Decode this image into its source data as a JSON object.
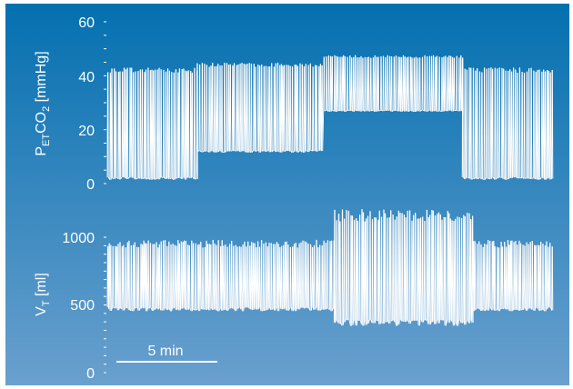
{
  "chart_data": [
    {
      "type": "line",
      "ylabel": {
        "main": "P",
        "sub": "ET",
        "mid": "CO",
        "sub2": "2",
        "unit": " [mmHg]"
      },
      "y_ticks": [
        "60",
        "40",
        "20",
        "0"
      ],
      "ylim": [
        0,
        60
      ],
      "x_unit": "min",
      "segments": [
        {
          "t0": 0.0,
          "t1": 3.35,
          "low": 2,
          "high": 42
        },
        {
          "t0": 3.35,
          "t1": 8.1,
          "low": 12,
          "high": 44
        },
        {
          "t0": 8.1,
          "t1": 13.3,
          "low": 27,
          "high": 47
        },
        {
          "t0": 13.3,
          "t1": 16.7,
          "low": 2,
          "high": 42
        }
      ]
    },
    {
      "type": "line",
      "ylabel": {
        "main": "V",
        "sub": "T",
        "unit": " [ml]"
      },
      "y_ticks": [
        "1000",
        "500",
        "0"
      ],
      "ylim": [
        0,
        1000
      ],
      "x_unit": "min",
      "segments": [
        {
          "t0": 0.0,
          "t1": 8.5,
          "low": 470,
          "high": 950
        },
        {
          "t0": 8.5,
          "t1": 13.7,
          "low": 370,
          "high": 1160
        },
        {
          "t0": 13.7,
          "t1": 16.7,
          "low": 470,
          "high": 950
        }
      ]
    }
  ],
  "scalebar": {
    "label": "5 min",
    "minutes": 5
  },
  "colors": {
    "background_top": "#0470b0",
    "background_bottom": "#6aa0ce",
    "trace": "#ffffff"
  }
}
